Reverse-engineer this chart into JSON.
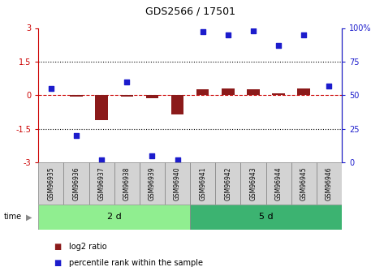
{
  "title": "GDS2566 / 17501",
  "samples": [
    "GSM96935",
    "GSM96936",
    "GSM96937",
    "GSM96938",
    "GSM96939",
    "GSM96940",
    "GSM96941",
    "GSM96942",
    "GSM96943",
    "GSM96944",
    "GSM96945",
    "GSM96946"
  ],
  "log2_ratio": [
    0.0,
    -0.05,
    -1.1,
    -0.05,
    -0.15,
    -0.85,
    0.25,
    0.3,
    0.25,
    0.1,
    0.3,
    0.0
  ],
  "percentile_rank": [
    55,
    20,
    2,
    60,
    5,
    2,
    97,
    95,
    98,
    87,
    95,
    57
  ],
  "groups": [
    {
      "label": "2 d",
      "start": 0,
      "end": 5,
      "color": "#90EE90"
    },
    {
      "label": "5 d",
      "start": 6,
      "end": 11,
      "color": "#3CB371"
    }
  ],
  "ylim_left": [
    -3,
    3
  ],
  "ylim_right": [
    0,
    100
  ],
  "yticks_left": [
    -3,
    -1.5,
    0,
    1.5,
    3
  ],
  "yticks_right": [
    0,
    25,
    50,
    75,
    100
  ],
  "hlines": [
    1.5,
    -1.5
  ],
  "bar_color": "#8B1A1A",
  "dot_color": "#1C1CCC",
  "bg_color": "#FFFFFF",
  "plot_bg": "#FFFFFF",
  "dashed_line_color": "#CC0000",
  "legend_red_label": "log2 ratio",
  "legend_blue_label": "percentile rank within the sample",
  "time_label": "time",
  "left_tick_color": "#CC0000",
  "right_tick_color": "#1C1CCC"
}
